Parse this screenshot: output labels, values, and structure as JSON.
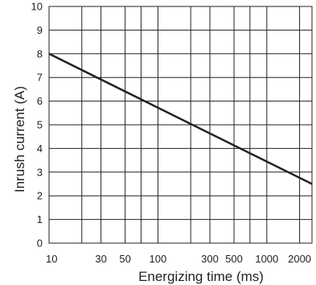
{
  "chart_data": {
    "type": "line",
    "title": "",
    "xlabel": "Energizing time (ms)",
    "ylabel": "Inrush current  (A)",
    "x_scale": "log",
    "xlim": [
      10,
      2600
    ],
    "ylim": [
      0,
      10
    ],
    "grid": true,
    "x_gridlines": [
      10,
      20,
      30,
      50,
      70,
      100,
      200,
      300,
      500,
      700,
      1000,
      2000
    ],
    "x_tick_labels": [
      {
        "value": 10,
        "label": "10"
      },
      {
        "value": 30,
        "label": "30"
      },
      {
        "value": 50,
        "label": "50"
      },
      {
        "value": 100,
        "label": "100"
      },
      {
        "value": 300,
        "label": "300"
      },
      {
        "value": 500,
        "label": "500"
      },
      {
        "value": 1000,
        "label": "1000"
      },
      {
        "value": 2000,
        "label": "2000"
      }
    ],
    "y_ticks": [
      0,
      1,
      2,
      3,
      4,
      5,
      6,
      7,
      8,
      9,
      10
    ],
    "series": [
      {
        "x": [
          10,
          2600
        ],
        "y": [
          8.0,
          2.5
        ]
      }
    ],
    "colors": {
      "line": "#222222",
      "grid": "#222222",
      "text": "#222222"
    }
  }
}
